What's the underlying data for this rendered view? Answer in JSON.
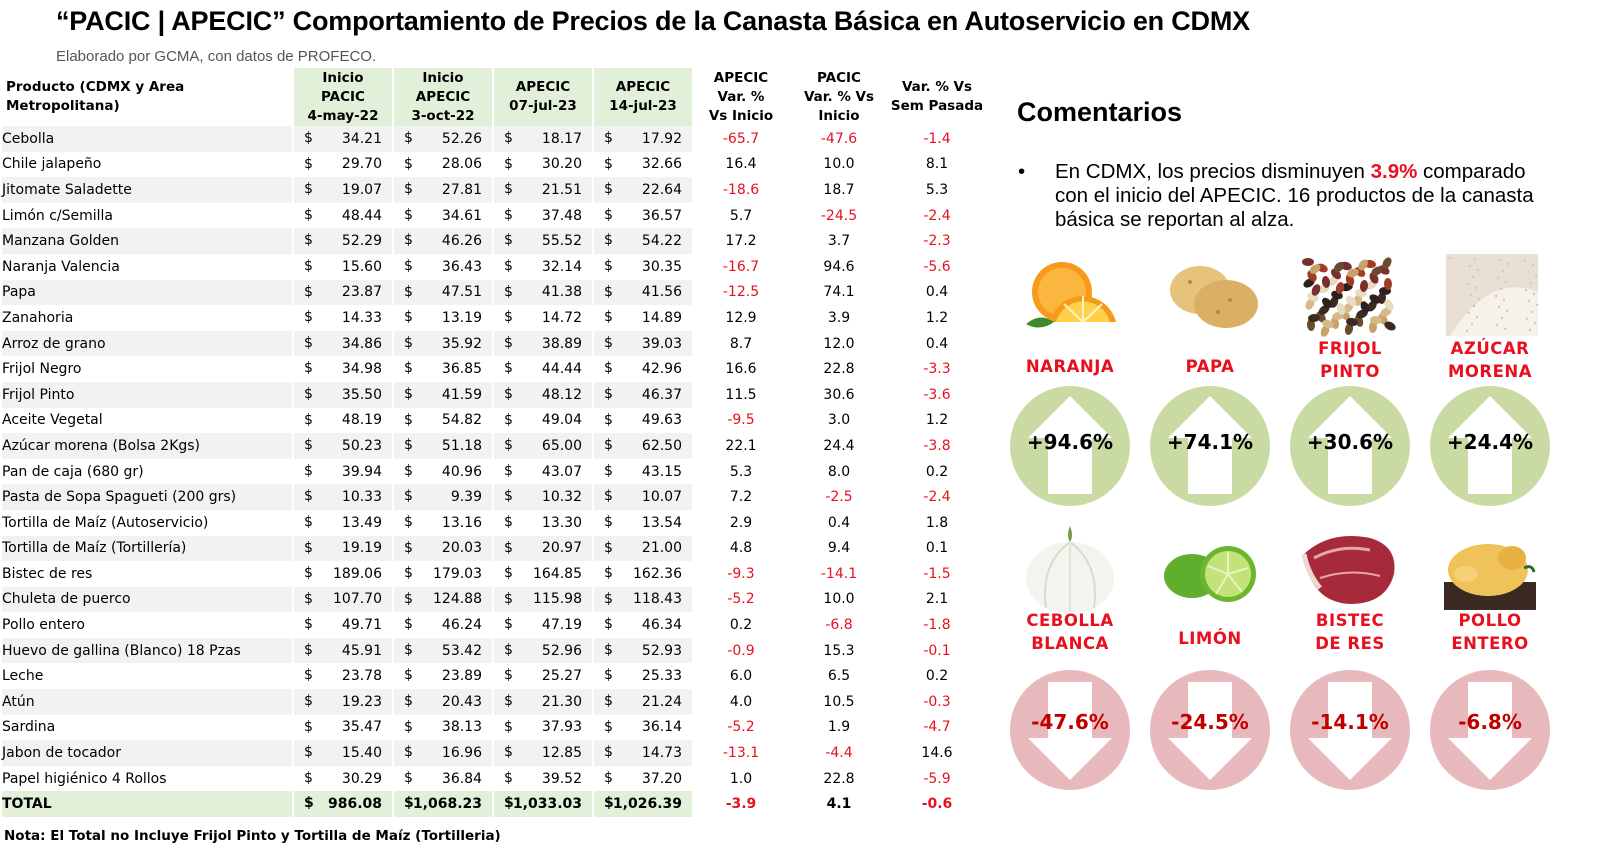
{
  "header": {
    "title": "“PACIC | APECIC” Comportamiento de Precios de la Canasta Básica en Autoservicio en CDMX",
    "subtitle": "Elaborado por GCMA, con datos de PROFECO."
  },
  "table": {
    "columns": [
      "Producto (CDMX y Area Metropolitana)",
      [
        "Inicio",
        "PACIC",
        "4-may-22"
      ],
      [
        "Inicio",
        "APECIC",
        "3-oct-22"
      ],
      [
        "APECIC",
        "07-jul-23"
      ],
      [
        "APECIC",
        "14-jul-23"
      ],
      [
        "APECIC",
        "Var. %",
        "Vs  Inicio"
      ],
      [
        "PACIC",
        "Var. % Vs",
        "Inicio"
      ],
      [
        "Var. % Vs",
        "Sem Pasada"
      ]
    ],
    "currency": "$",
    "rows": [
      {
        "product": "Cebolla",
        "p1": "34.21",
        "p2": "52.26",
        "p3": "18.17",
        "p4": "17.92",
        "v1": "-65.7",
        "v2": "-47.6",
        "v3": "-1.4"
      },
      {
        "product": "Chile jalapeño",
        "p1": "29.70",
        "p2": "28.06",
        "p3": "30.20",
        "p4": "32.66",
        "v1": "16.4",
        "v2": "10.0",
        "v3": "8.1"
      },
      {
        "product": "Jitomate Saladette",
        "p1": "19.07",
        "p2": "27.81",
        "p3": "21.51",
        "p4": "22.64",
        "v1": "-18.6",
        "v2": "18.7",
        "v3": "5.3"
      },
      {
        "product": "Limón c/Semilla",
        "p1": "48.44",
        "p2": "34.61",
        "p3": "37.48",
        "p4": "36.57",
        "v1": "5.7",
        "v2": "-24.5",
        "v3": "-2.4"
      },
      {
        "product": "Manzana Golden",
        "p1": "52.29",
        "p2": "46.26",
        "p3": "55.52",
        "p4": "54.22",
        "v1": "17.2",
        "v2": "3.7",
        "v3": "-2.3"
      },
      {
        "product": "Naranja Valencia",
        "p1": "15.60",
        "p2": "36.43",
        "p3": "32.14",
        "p4": "30.35",
        "v1": "-16.7",
        "v2": "94.6",
        "v3": "-5.6"
      },
      {
        "product": "Papa",
        "p1": "23.87",
        "p2": "47.51",
        "p3": "41.38",
        "p4": "41.56",
        "v1": "-12.5",
        "v2": "74.1",
        "v3": "0.4"
      },
      {
        "product": "Zanahoria",
        "p1": "14.33",
        "p2": "13.19",
        "p3": "14.72",
        "p4": "14.89",
        "v1": "12.9",
        "v2": "3.9",
        "v3": "1.2"
      },
      {
        "product": "Arroz de grano",
        "p1": "34.86",
        "p2": "35.92",
        "p3": "38.89",
        "p4": "39.03",
        "v1": "8.7",
        "v2": "12.0",
        "v3": "0.4"
      },
      {
        "product": "Frijol Negro",
        "p1": "34.98",
        "p2": "36.85",
        "p3": "44.44",
        "p4": "42.96",
        "v1": "16.6",
        "v2": "22.8",
        "v3": "-3.3"
      },
      {
        "product": "Frijol Pinto",
        "p1": "35.50",
        "p2": "41.59",
        "p3": "48.12",
        "p4": "46.37",
        "v1": "11.5",
        "v2": "30.6",
        "v3": "-3.6"
      },
      {
        "product": "Aceite Vegetal",
        "p1": "48.19",
        "p2": "54.82",
        "p3": "49.04",
        "p4": "49.63",
        "v1": "-9.5",
        "v2": "3.0",
        "v3": "1.2"
      },
      {
        "product": "Azúcar morena (Bolsa 2Kgs)",
        "p1": "50.23",
        "p2": "51.18",
        "p3": "65.00",
        "p4": "62.50",
        "v1": "22.1",
        "v2": "24.4",
        "v3": "-3.8"
      },
      {
        "product": "Pan de caja (680 gr)",
        "p1": "39.94",
        "p2": "40.96",
        "p3": "43.07",
        "p4": "43.15",
        "v1": "5.3",
        "v2": "8.0",
        "v3": "0.2"
      },
      {
        "product": "Pasta de Sopa Spagueti (200 grs)",
        "p1": "10.33",
        "p2": "9.39",
        "p3": "10.32",
        "p4": "10.07",
        "v1": "7.2",
        "v2": "-2.5",
        "v3": "-2.4"
      },
      {
        "product": "Tortilla de Maíz (Autoservicio)",
        "p1": "13.49",
        "p2": "13.16",
        "p3": "13.30",
        "p4": "13.54",
        "v1": "2.9",
        "v2": "0.4",
        "v3": "1.8"
      },
      {
        "product": "Tortilla de Maíz (Tortillería)",
        "p1": "19.19",
        "p2": "20.03",
        "p3": "20.97",
        "p4": "21.00",
        "v1": "4.8",
        "v2": "9.4",
        "v3": "0.1"
      },
      {
        "product": "Bistec de res",
        "p1": "189.06",
        "p2": "179.03",
        "p3": "164.85",
        "p4": "162.36",
        "v1": "-9.3",
        "v2": "-14.1",
        "v3": "-1.5"
      },
      {
        "product": "Chuleta de puerco",
        "p1": "107.70",
        "p2": "124.88",
        "p3": "115.98",
        "p4": "118.43",
        "v1": "-5.2",
        "v2": "10.0",
        "v3": "2.1"
      },
      {
        "product": "Pollo entero",
        "p1": "49.71",
        "p2": "46.24",
        "p3": "47.19",
        "p4": "46.34",
        "v1": "0.2",
        "v2": "-6.8",
        "v3": "-1.8"
      },
      {
        "product": "Huevo de gallina (Blanco) 18 Pzas",
        "p1": "45.91",
        "p2": "53.42",
        "p3": "52.96",
        "p4": "52.93",
        "v1": "-0.9",
        "v2": "15.3",
        "v3": "-0.1"
      },
      {
        "product": "Leche",
        "p1": "23.78",
        "p2": "23.89",
        "p3": "25.27",
        "p4": "25.33",
        "v1": "6.0",
        "v2": "6.5",
        "v3": "0.2"
      },
      {
        "product": "Atún",
        "p1": "19.23",
        "p2": "20.43",
        "p3": "21.30",
        "p4": "21.24",
        "v1": "4.0",
        "v2": "10.5",
        "v3": "-0.3"
      },
      {
        "product": "Sardina",
        "p1": "35.47",
        "p2": "38.13",
        "p3": "37.93",
        "p4": "36.14",
        "v1": "-5.2",
        "v2": "1.9",
        "v3": "-4.7"
      },
      {
        "product": "Jabon de tocador",
        "p1": "15.40",
        "p2": "16.96",
        "p3": "12.85",
        "p4": "14.73",
        "v1": "-13.1",
        "v2": "-4.4",
        "v3": "14.6"
      },
      {
        "product": "Papel higiénico 4 Rollos",
        "p1": "30.29",
        "p2": "36.84",
        "p3": "39.52",
        "p4": "37.20",
        "v1": "1.0",
        "v2": "22.8",
        "v3": "-5.9"
      }
    ],
    "total": {
      "product": "TOTAL",
      "p1": "986.08",
      "p2": "1,068.23",
      "p3": "1,033.03",
      "p4": "1,026.39",
      "v1": "-3.9",
      "v2": "4.1",
      "v3": "-0.6"
    },
    "note": "Nota: El Total no Incluye Frijol Pinto y Tortilla de Maíz (Tortilleria)"
  },
  "comments": {
    "title": "Comentarios",
    "bullet": "•",
    "text_before": "En CDMX, los precios disminuyen ",
    "highlight": "3.9%",
    "text_after": " comparado con el inicio del APECIC. 16 productos de la canasta básica se reportan al alza.",
    "highlight_color": "#e8101e"
  },
  "highlights": {
    "up": [
      {
        "label": [
          "NARANJA"
        ],
        "pct": "+94.6%",
        "icon": "orange-icon"
      },
      {
        "label": [
          "PAPA"
        ],
        "pct": "+74.1%",
        "icon": "potato-icon"
      },
      {
        "label": [
          "FRIJOL",
          "PINTO"
        ],
        "pct": "+30.6%",
        "icon": "beans-icon"
      },
      {
        "label": [
          "AZÚCAR",
          "MORENA"
        ],
        "pct": "+24.4%",
        "icon": "sugar-icon"
      }
    ],
    "down": [
      {
        "label": [
          "CEBOLLA",
          "BLANCA"
        ],
        "pct": "-47.6%",
        "icon": "onion-icon"
      },
      {
        "label": [
          "LIMÓN"
        ],
        "pct": "-24.5%",
        "icon": "lime-icon"
      },
      {
        "label": [
          "BISTEC",
          "DE RES"
        ],
        "pct": "-14.1%",
        "icon": "beef-icon"
      },
      {
        "label": [
          "POLLO",
          "ENTERO"
        ],
        "pct": "-6.8%",
        "icon": "chicken-icon"
      }
    ],
    "colors": {
      "up_circle": "#c9dba3",
      "down_circle": "#e8b9bc",
      "arrow": "#ffffff",
      "label": "#e8101e",
      "down_text": "#c00000"
    }
  }
}
